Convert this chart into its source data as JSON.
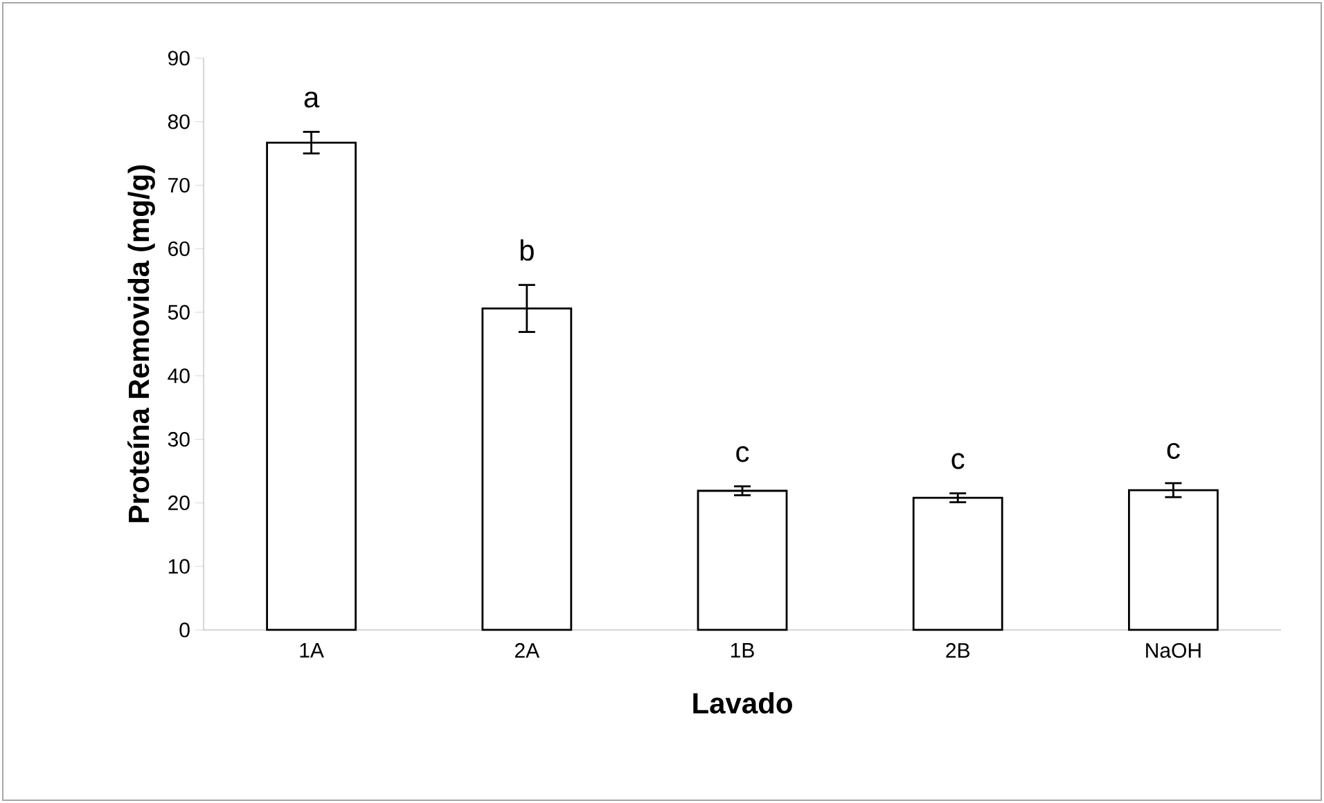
{
  "chart_data": {
    "type": "bar",
    "xlabel": "Lavado",
    "ylabel": "Proteína Removida (mg/g)",
    "categories": [
      "1A",
      "2A",
      "1B",
      "2B",
      "NaOH"
    ],
    "values": [
      76.7,
      50.6,
      21.9,
      20.8,
      22.0
    ],
    "errors": [
      1.7,
      3.7,
      0.7,
      0.7,
      1.1
    ],
    "color": "#ffffff",
    "ylim": [
      0,
      90
    ],
    "yticks": [
      0,
      10,
      20,
      30,
      40,
      50,
      60,
      70,
      80,
      90
    ],
    "annotations": [
      "a",
      "b",
      "c",
      "c",
      "c"
    ]
  }
}
